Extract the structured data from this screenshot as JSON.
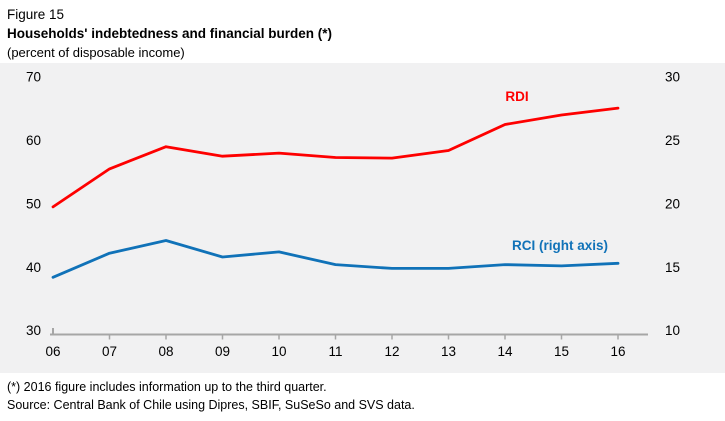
{
  "figure": {
    "label": "Figure 15",
    "title": "Households' indebtedness and financial burden (*)",
    "subtitle": "(percent of disposable income)"
  },
  "chart_data": {
    "type": "line",
    "x_labels": [
      "06",
      "07",
      "08",
      "09",
      "10",
      "11",
      "12",
      "13",
      "14",
      "15",
      "16"
    ],
    "series": [
      {
        "name": "RDI",
        "label_text": "RDI",
        "axis": "left",
        "color": "#fe0000",
        "values": [
          49.5,
          55.5,
          59.0,
          57.5,
          58.0,
          57.3,
          57.2,
          58.4,
          62.5,
          64.0,
          65.1
        ]
      },
      {
        "name": "RCI",
        "label_text": "RCI (right axis)",
        "axis": "right",
        "color": "#1072b8",
        "values": [
          14.2,
          16.1,
          17.1,
          15.8,
          16.2,
          15.2,
          14.9,
          14.9,
          15.2,
          15.1,
          15.3
        ]
      }
    ],
    "left_axis": {
      "min": 30,
      "max": 70,
      "ticks": [
        30,
        40,
        50,
        60,
        70
      ]
    },
    "right_axis": {
      "min": 10,
      "max": 30,
      "ticks": [
        10,
        15,
        20,
        25,
        30
      ]
    },
    "grid": false,
    "legend": "inline-labels",
    "panel_bg": "#f1f1f2",
    "axis_line_color": "#a6a6a6",
    "title": "Households' indebtedness and financial burden (*)",
    "ylabel_left": "percent of disposable income (RDI)",
    "ylabel_right": "percent of disposable income (RCI)"
  },
  "footnotes": {
    "note": "(*) 2016 figure includes information up to the third quarter.",
    "source": "Source: Central Bank of Chile using Dipres, SBIF, SuSeSo and SVS data."
  }
}
